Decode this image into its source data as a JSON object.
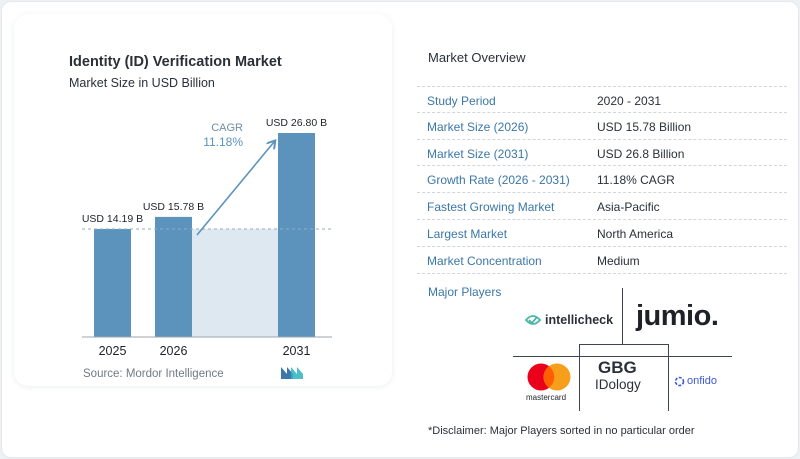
{
  "chart": {
    "title": "Identity (ID) Verification Market",
    "subtitle": "Market Size in USD Billion",
    "source": "Source:  Mordor Intelligence",
    "cagr_label": "CAGR",
    "cagr_value": "11.18%"
  },
  "chart_data": {
    "type": "bar",
    "categories": [
      "2025",
      "2026",
      "2031"
    ],
    "values": [
      14.19,
      15.78,
      26.8
    ],
    "value_labels": [
      "USD 14.19 B",
      "USD 15.78 B",
      "USD 26.80 B"
    ],
    "ylim": [
      0,
      26.8
    ],
    "grid": false,
    "bar_color": "#5b93bd",
    "reference_line": 14.19
  },
  "overview": {
    "title": "Market Overview",
    "rows": [
      {
        "label": "Study Period",
        "value": "2020 - 2031"
      },
      {
        "label": "Market Size (2026)",
        "value": "USD 15.78 Billion"
      },
      {
        "label": "Market Size (2031)",
        "value": "USD 26.8 Billion"
      },
      {
        "label": "Growth Rate (2026 - 2031)",
        "value": "11.18% CAGR"
      },
      {
        "label": "Fastest Growing Market",
        "value": "Asia-Pacific"
      },
      {
        "label": "Largest Market",
        "value": "North America"
      },
      {
        "label": "Market Concentration",
        "value": "Medium"
      }
    ]
  },
  "players": {
    "label": "Major Players",
    "logos": {
      "intellicheck": "intellicheck",
      "jumio": "jumio.",
      "mastercard": "mastercard",
      "gbg_top": "GBG",
      "gbg_bottom": "IDology",
      "onfido": "onfido"
    }
  },
  "disclaimer": "*Disclaimer: Major Players sorted in no particular order",
  "colors": {
    "accent": "#3b77a8",
    "bar": "#5b93bd",
    "area": "#dde8f1",
    "arrow": "#5b93bd"
  }
}
